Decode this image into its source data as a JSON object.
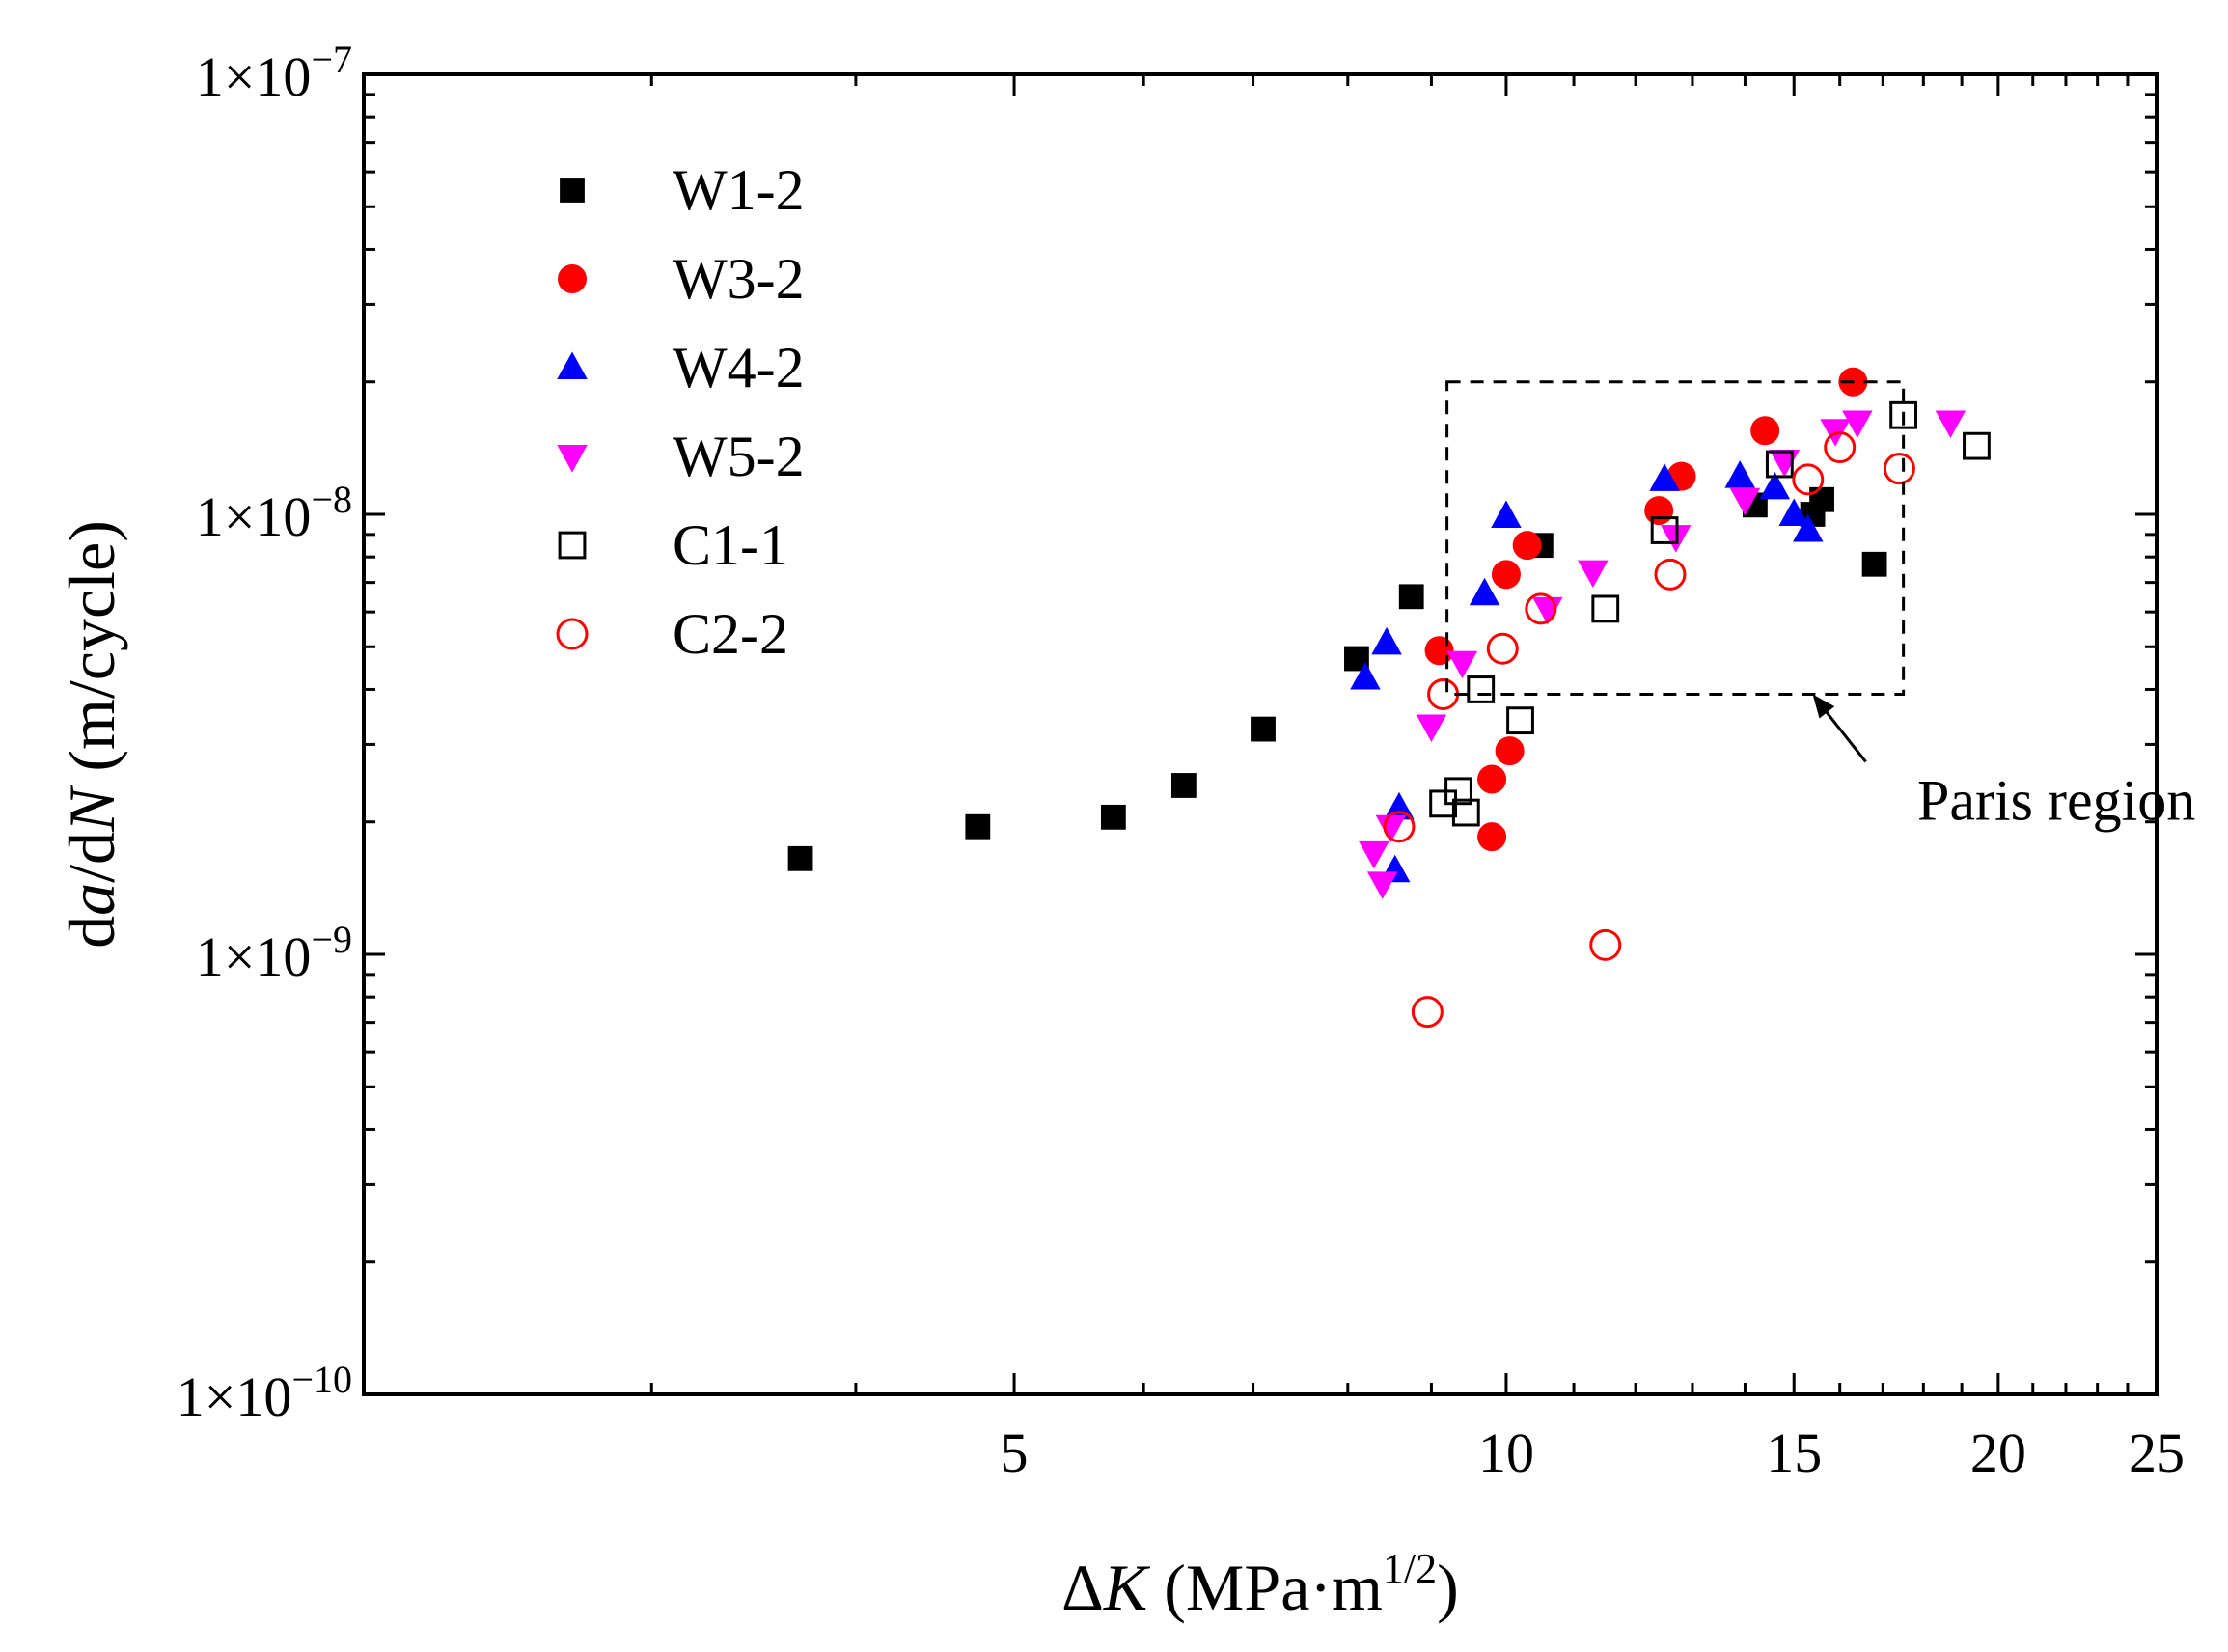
{
  "chart_data": {
    "type": "scatter",
    "x_scale": "log",
    "y_scale": "log",
    "xlim": [
      2.0,
      25.0
    ],
    "ylim": [
      1e-10,
      1e-07
    ],
    "xlabel": {
      "prefix": "Δ",
      "italic": "K",
      "suffix": " (MPa·m",
      "sup": "1/2",
      "close": ")"
    },
    "ylabel": {
      "p1": "d",
      "i1": "a",
      "p2": "/d",
      "i2": "N",
      "p3": " (m/cycle)"
    },
    "x_ticks": [
      {
        "value": 5,
        "label": "5"
      },
      {
        "value": 10,
        "label": "10"
      },
      {
        "value": 15,
        "label": "15"
      },
      {
        "value": 20,
        "label": "20"
      },
      {
        "value": 25,
        "label": "25"
      }
    ],
    "y_ticks": [
      {
        "value": 1e-07,
        "base": "1×10",
        "exp": "−7"
      },
      {
        "value": 1e-08,
        "base": "1×10",
        "exp": "−8"
      },
      {
        "value": 1e-09,
        "base": "1×10",
        "exp": "−9"
      },
      {
        "value": 1e-10,
        "base": "1×10",
        "exp": "−10"
      }
    ],
    "grid": false,
    "legend_position": "top-left",
    "series": [
      {
        "name": "W1-2",
        "marker": "square",
        "filled": true,
        "color": "#000000",
        "points": [
          [
            3.7,
            1.65e-09
          ],
          [
            4.75,
            1.95e-09
          ],
          [
            5.75,
            2.05e-09
          ],
          [
            6.35,
            2.42e-09
          ],
          [
            7.1,
            3.25e-09
          ],
          [
            8.1,
            4.7e-09
          ],
          [
            8.75,
            6.5e-09
          ],
          [
            10.5,
            8.5e-09
          ],
          [
            14.2,
            1.05e-08
          ],
          [
            15.4,
            1e-08
          ],
          [
            15.6,
            1.08e-08
          ],
          [
            16.8,
            7.7e-09
          ]
        ]
      },
      {
        "name": "W3-2",
        "marker": "circle",
        "filled": true,
        "color": "#ff0000",
        "points": [
          [
            9.1,
            4.9e-09
          ],
          [
            9.8,
            1.85e-09
          ],
          [
            9.8,
            2.5e-09
          ],
          [
            10.05,
            2.9e-09
          ],
          [
            10.0,
            7.3e-09
          ],
          [
            10.3,
            8.5e-09
          ],
          [
            12.4,
            1.02e-08
          ],
          [
            12.8,
            1.22e-08
          ],
          [
            14.4,
            1.55e-08
          ],
          [
            16.3,
            2e-08
          ]
        ]
      },
      {
        "name": "W4-2",
        "marker": "triangle-up",
        "filled": true,
        "color": "#0000ff",
        "points": [
          [
            8.55,
            1.55e-09
          ],
          [
            8.6,
            2.15e-09
          ],
          [
            8.45,
            5.1e-09
          ],
          [
            8.2,
            4.25e-09
          ],
          [
            9.7,
            6.6e-09
          ],
          [
            10.0,
            9.9e-09
          ],
          [
            12.5,
            1.2e-08
          ],
          [
            13.9,
            1.22e-08
          ],
          [
            14.6,
            1.15e-08
          ],
          [
            15.0,
            1e-08
          ],
          [
            15.3,
            9.2e-09
          ]
        ]
      },
      {
        "name": "W5-2",
        "marker": "triangle-down",
        "filled": true,
        "color": "#ff00ff",
        "points": [
          [
            8.4,
            1.45e-09
          ],
          [
            8.3,
            1.7e-09
          ],
          [
            8.5,
            1.95e-09
          ],
          [
            9.0,
            3.3e-09
          ],
          [
            9.4,
            4.6e-09
          ],
          [
            10.6,
            6.1e-09
          ],
          [
            11.3,
            7.4e-09
          ],
          [
            12.7,
            8.9e-09
          ],
          [
            14.0,
            1.08e-08
          ],
          [
            14.8,
            1.32e-08
          ],
          [
            15.9,
            1.55e-08
          ],
          [
            16.4,
            1.62e-08
          ],
          [
            18.7,
            1.62e-08
          ]
        ]
      },
      {
        "name": "C1-1",
        "marker": "square",
        "filled": false,
        "color": "#000000",
        "points": [
          [
            9.15,
            2.2e-09
          ],
          [
            9.35,
            2.35e-09
          ],
          [
            9.45,
            2.1e-09
          ],
          [
            9.65,
            4e-09
          ],
          [
            10.2,
            3.4e-09
          ],
          [
            11.5,
            6.1e-09
          ],
          [
            12.5,
            9.2e-09
          ],
          [
            14.7,
            1.3e-08
          ],
          [
            17.5,
            1.68e-08
          ],
          [
            19.4,
            1.43e-08
          ]
        ]
      },
      {
        "name": "C2-2",
        "marker": "circle",
        "filled": false,
        "color": "#ff0000",
        "points": [
          [
            8.6,
            1.95e-09
          ],
          [
            9.15,
            3.9e-09
          ],
          [
            8.95,
            7.4e-10
          ],
          [
            9.95,
            4.95e-09
          ],
          [
            10.5,
            6.1e-09
          ],
          [
            11.5,
            1.05e-09
          ],
          [
            12.6,
            7.3e-09
          ],
          [
            15.3,
            1.2e-08
          ],
          [
            16.0,
            1.42e-08
          ],
          [
            17.4,
            1.27e-08
          ]
        ]
      }
    ],
    "annotation": {
      "text": "Paris region",
      "box_x": [
        9.2,
        17.5
      ],
      "box_y": [
        3.9e-09,
        2e-08
      ],
      "arrow_to": [
        15.4,
        3.9e-09
      ]
    }
  }
}
